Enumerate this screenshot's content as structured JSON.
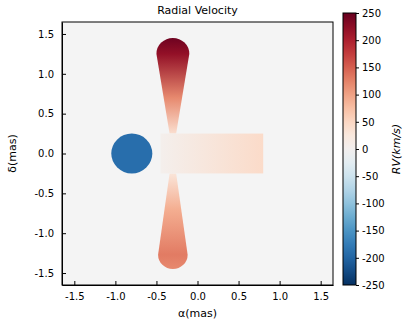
{
  "chart_data": {
    "type": "map",
    "title": "Radial Velocity",
    "x_label": "α(mas)",
    "y_label": "δ(mas)",
    "xlim": [
      -1.65,
      1.65
    ],
    "ylim": [
      -1.65,
      1.65
    ],
    "xticks": [
      -1.5,
      {
        "value": -1,
        "label": "-1.0"
      },
      -0.5,
      {
        "value": 0,
        "label": "0.0"
      },
      0.5,
      {
        "value": 1,
        "label": "1.0"
      },
      1.5
    ],
    "yticks": [
      -1.5,
      {
        "value": -1,
        "label": "-1.0"
      },
      -0.5,
      {
        "value": 0,
        "label": "0.0"
      },
      0.5,
      {
        "value": 1,
        "label": "1.0"
      },
      1.5
    ],
    "colorbar": {
      "label": "RV(km/s)",
      "lim": [
        -250,
        250
      ],
      "ticks": [
        -250,
        -200,
        -150,
        -100,
        -50,
        0,
        50,
        100,
        150,
        200,
        250
      ]
    },
    "jets": [
      {
        "x": -0.3,
        "base": 0.25,
        "end": 1.25,
        "half_width": [
          0.04,
          0.2
        ],
        "delta": [
          0.25,
          0.7,
          1.25,
          1.45
        ],
        "rv": [
          40,
          120,
          220,
          245
        ]
      },
      {
        "x": -0.3,
        "base": -0.25,
        "end": -1.27,
        "half_width": [
          0.04,
          0.18
        ],
        "delta": [
          -0.25,
          -0.7,
          -1.27,
          -1.45
        ],
        "rv": [
          30,
          90,
          130,
          120
        ]
      }
    ],
    "disk": {
      "x": [
        -0.45,
        0.8
      ],
      "y": [
        -0.25,
        0.25
      ],
      "rv": [
        5,
        45
      ]
    },
    "star": {
      "x": -0.8,
      "y": 0,
      "radius": 0.25,
      "rv": -190
    }
  }
}
